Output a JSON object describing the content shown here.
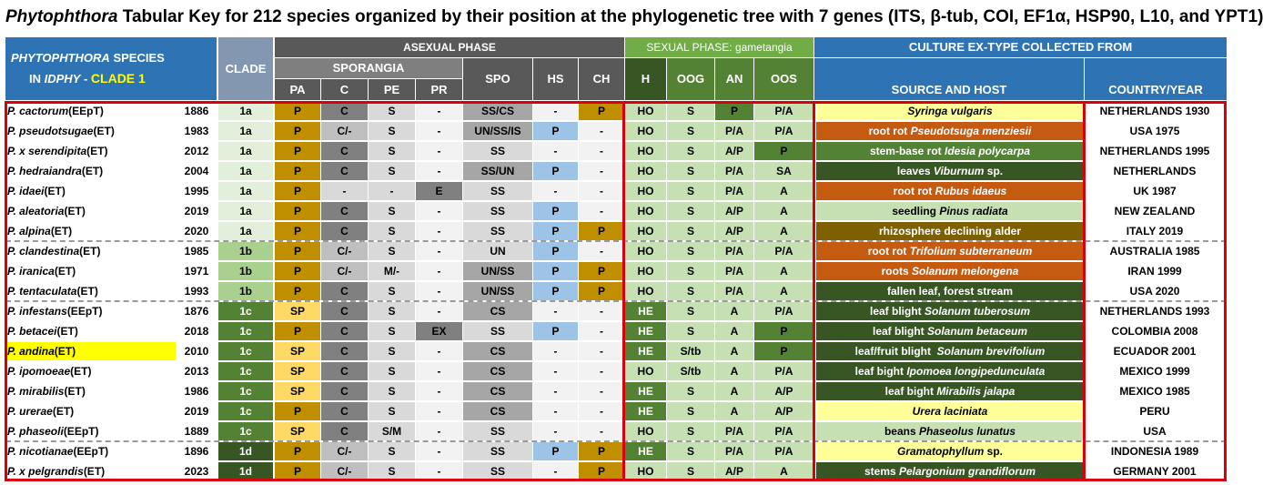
{
  "title": {
    "genus": "Phytophthora",
    "text": " Tabular Key for 212 species organized by their position at the phylogenetic tree with 7 genes (ITS, β-tub, COI, EF1α, HSP90, L10, and YPT1)"
  },
  "header": {
    "species_line1": "PHYTOPHTHORA",
    "species_line1_rest": " SPECIES",
    "species_line2": "IN ",
    "species_line2_it": "IDPHY",
    "species_line2_rest": " - ",
    "clade_label": "CLADE 1",
    "clade": "CLADE",
    "asexual": "ASEXUAL PHASE",
    "sporangia": "SPORANGIA",
    "sexual": "SEXUAL PHASE: gametangia",
    "culture": "CULTURE EX-TYPE COLLECTED FROM",
    "source": "SOURCE AND HOST",
    "country": "COUNTRY/YEAR",
    "cols": [
      "PA",
      "C",
      "PE",
      "PR",
      "SPO",
      "HS",
      "CH",
      "H",
      "OOG",
      "AN",
      "OOS"
    ]
  },
  "colors": {
    "header_blue": "#2e74b5",
    "header_gray_dark": "#595959",
    "header_gray_mid": "#7f7f7f",
    "header_green": "#70ad47",
    "gold": "#bf8f00",
    "pale_yellow": "#ffd966",
    "lightblue": "#9dc3e6",
    "green_dark": "#375623",
    "orange": "#c55a11",
    "red_frame": "#d9000d"
  },
  "rows": [
    {
      "sp": "P. cactorum",
      "tag": " (EEpT)",
      "year": "1886",
      "clade": "1a",
      "pa": "P",
      "c": "C",
      "pe": "S",
      "pr": "-",
      "spo": "SS/CS",
      "hs": "-",
      "ch": "P",
      "h": "HO",
      "oog": "S",
      "an": "P",
      "oos": "P/A",
      "src_pre": "",
      "src_it": "Syringa vulgaris",
      "src_post": "",
      "country": "NETHERLANDS 1930",
      "src_style": "yellow",
      "an_style": "mid",
      "oos_style": "pale"
    },
    {
      "sp": "P. pseudotsugae",
      "tag": " (ET)",
      "year": "1983",
      "clade": "1a",
      "pa": "P",
      "c": "C/-",
      "pe": "S",
      "pr": "-",
      "spo": "UN/SS/IS",
      "hs": "P",
      "ch": "-",
      "h": "HO",
      "oog": "S",
      "an": "P/A",
      "oos": "P/A",
      "src_pre": "root rot ",
      "src_it": "Pseudotsuga menziesii",
      "src_post": "",
      "country": "USA 1975",
      "src_style": "orange",
      "an_style": "pale",
      "oos_style": "pale"
    },
    {
      "sp": "P. x serendipita",
      "tag": " (ET)",
      "year": "2012",
      "clade": "1a",
      "pa": "P",
      "c": "C",
      "pe": "S",
      "pr": "-",
      "spo": "SS",
      "hs": "-",
      "ch": "-",
      "h": "HO",
      "oog": "S",
      "an": "A/P",
      "oos": "P",
      "src_pre": "stem-base rot ",
      "src_it": "Idesia polycarpa",
      "src_post": "",
      "country": "NETHERLANDS 1995",
      "src_style": "midgreen",
      "an_style": "pale",
      "oos_style": "mid"
    },
    {
      "sp": "P. hedraiandra",
      "tag": " (ET)",
      "year": "2004",
      "clade": "1a",
      "pa": "P",
      "c": "C",
      "pe": "S",
      "pr": "-",
      "spo": "SS/UN",
      "hs": "P",
      "ch": "-",
      "h": "HO",
      "oog": "S",
      "an": "P/A",
      "oos": "SA",
      "src_pre": "leaves ",
      "src_it": "Viburnum",
      "src_post": " sp.",
      "country": "NETHERLANDS",
      "src_style": "darkgreen",
      "an_style": "pale",
      "oos_style": "pale"
    },
    {
      "sp": "P. idaei",
      "tag": " (ET)",
      "year": "1995",
      "clade": "1a",
      "pa": "P",
      "c": "-",
      "pe": "-",
      "pr": "E",
      "spo": "SS",
      "hs": "-",
      "ch": "-",
      "h": "HO",
      "oog": "S",
      "an": "P/A",
      "oos": "A",
      "src_pre": "root rot ",
      "src_it": "Rubus idaeus",
      "src_post": "",
      "country": "UK 1987",
      "src_style": "orange",
      "an_style": "pale",
      "oos_style": "pale"
    },
    {
      "sp": "P. aleatoria",
      "tag": " (ET)",
      "year": "2019",
      "clade": "1a",
      "pa": "P",
      "c": "C",
      "pe": "S",
      "pr": "-",
      "spo": "SS",
      "hs": "P",
      "ch": "-",
      "h": "HO",
      "oog": "S",
      "an": "A/P",
      "oos": "A",
      "src_pre": "seedling ",
      "src_it": "Pinus radiata",
      "src_post": "",
      "country": "NEW ZEALAND",
      "src_style": "palegreen",
      "an_style": "pale",
      "oos_style": "pale"
    },
    {
      "sp": "P. alpina",
      "tag": " (ET)",
      "year": "2020",
      "clade": "1a",
      "pa": "P",
      "c": "C",
      "pe": "S",
      "pr": "-",
      "spo": "SS",
      "hs": "P",
      "ch": "P",
      "h": "HO",
      "oog": "S",
      "an": "A/P",
      "oos": "A",
      "src_pre": "rhizosphere declining alder",
      "src_it": "",
      "src_post": "",
      "country": "ITALY 2019",
      "src_style": "olive",
      "an_style": "pale",
      "oos_style": "pale"
    },
    {
      "sp": "P. clandestina",
      "tag": " (ET)",
      "year": "1985",
      "clade": "1b",
      "pa": "P",
      "c": "C/-",
      "pe": "S",
      "pr": "-",
      "spo": "UN",
      "hs": "P",
      "ch": "-",
      "h": "HO",
      "oog": "S",
      "an": "P/A",
      "oos": "P/A",
      "src_pre": "root rot ",
      "src_it": "Trifolium subterraneum",
      "src_post": "",
      "country": "AUSTRALIA 1985",
      "src_style": "orange",
      "an_style": "pale",
      "oos_style": "pale"
    },
    {
      "sp": "P. iranica",
      "tag": " (ET)",
      "year": "1971",
      "clade": "1b",
      "pa": "P",
      "c": "C/-",
      "pe": "M/-",
      "pr": "-",
      "spo": "UN/SS",
      "hs": "P",
      "ch": "P",
      "h": "HO",
      "oog": "S",
      "an": "P/A",
      "oos": "A",
      "src_pre": "roots ",
      "src_it": "Solanum melongena",
      "src_post": "",
      "country": "IRAN 1999",
      "src_style": "orange",
      "an_style": "pale",
      "oos_style": "pale"
    },
    {
      "sp": "P. tentaculata",
      "tag": " (ET)",
      "year": "1993",
      "clade": "1b",
      "pa": "P",
      "c": "C",
      "pe": "S",
      "pr": "-",
      "spo": "UN/SS",
      "hs": "P",
      "ch": "P",
      "h": "HO",
      "oog": "S",
      "an": "P/A",
      "oos": "A",
      "src_pre": "fallen leaf, forest stream",
      "src_it": "",
      "src_post": "",
      "country": "USA 2020",
      "src_style": "darkgreen",
      "an_style": "pale",
      "oos_style": "pale"
    },
    {
      "sp": "P. infestans",
      "tag": " (EEpT)",
      "year": "1876",
      "clade": "1c",
      "pa": "SP",
      "c": "C",
      "pe": "S",
      "pr": "-",
      "spo": "CS",
      "hs": "-",
      "ch": "-",
      "h": "HE",
      "oog": "S",
      "an": "A",
      "oos": "P/A",
      "src_pre": "leaf blight ",
      "src_it": "Solanum tuberosum",
      "src_post": "",
      "country": "NETHERLANDS 1993",
      "src_style": "darkgreen",
      "an_style": "pale",
      "oos_style": "pale"
    },
    {
      "sp": "P. betacei",
      "tag": " (ET)",
      "year": "2018",
      "clade": "1c",
      "pa": "P",
      "c": "C",
      "pe": "S",
      "pr": "EX",
      "spo": "SS",
      "hs": "P",
      "ch": "-",
      "h": "HE",
      "oog": "S",
      "an": "A",
      "oos": "P",
      "src_pre": "leaf blight ",
      "src_it": "Solanum betaceum",
      "src_post": "",
      "country": "COLOMBIA 2008",
      "src_style": "darkgreen",
      "an_style": "pale",
      "oos_style": "mid"
    },
    {
      "sp": "P. andina",
      "tag": " (ET)",
      "year": "2010",
      "clade": "1c",
      "pa": "SP",
      "c": "C",
      "pe": "S",
      "pr": "-",
      "spo": "CS",
      "hs": "-",
      "ch": "-",
      "h": "HE",
      "oog": "S/tb",
      "an": "A",
      "oos": "P",
      "src_pre": "leaf/fruit blight  ",
      "src_it": "Solanum brevifolium",
      "src_post": "",
      "country": "ECUADOR 2001",
      "src_style": "darkgreen",
      "an_style": "pale",
      "oos_style": "mid",
      "highlight": true
    },
    {
      "sp": "P. ipomoeae",
      "tag": " (ET)",
      "year": "2013",
      "clade": "1c",
      "pa": "SP",
      "c": "C",
      "pe": "S",
      "pr": "-",
      "spo": "CS",
      "hs": "-",
      "ch": "-",
      "h": "HO",
      "oog": "S/tb",
      "an": "A",
      "oos": "P/A",
      "src_pre": "leaf bight ",
      "src_it": "Ipomoea longipedunculata",
      "src_post": "",
      "country": "MEXICO 1999",
      "src_style": "darkgreen",
      "an_style": "pale",
      "oos_style": "pale"
    },
    {
      "sp": "P. mirabilis",
      "tag": " (ET)",
      "year": "1986",
      "clade": "1c",
      "pa": "SP",
      "c": "C",
      "pe": "S",
      "pr": "-",
      "spo": "CS",
      "hs": "-",
      "ch": "-",
      "h": "HE",
      "oog": "S",
      "an": "A",
      "oos": "A/P",
      "src_pre": "leaf bight ",
      "src_it": "Mirabilis jalapa",
      "src_post": "",
      "country": "MEXICO 1985",
      "src_style": "darkgreen",
      "an_style": "pale",
      "oos_style": "pale"
    },
    {
      "sp": "P. urerae",
      "tag": " (ET)",
      "year": "2019",
      "clade": "1c",
      "pa": "P",
      "c": "C",
      "pe": "S",
      "pr": "-",
      "spo": "CS",
      "hs": "-",
      "ch": "-",
      "h": "HE",
      "oog": "S",
      "an": "A",
      "oos": "A/P",
      "src_pre": "",
      "src_it": "Urera laciniata",
      "src_post": "",
      "country": "PERU",
      "src_style": "yellow",
      "an_style": "pale",
      "oos_style": "pale"
    },
    {
      "sp": "P. phaseoli",
      "tag": " (EEpT)",
      "year": "1889",
      "clade": "1c",
      "pa": "SP",
      "c": "C",
      "pe": "S/M",
      "pr": "-",
      "spo": "SS",
      "hs": "-",
      "ch": "-",
      "h": "HO",
      "oog": "S",
      "an": "P/A",
      "oos": "P/A",
      "src_pre": "beans ",
      "src_it": "Phaseolus lunatus",
      "src_post": "",
      "country": "USA",
      "src_style": "palegreen",
      "an_style": "pale",
      "oos_style": "pale"
    },
    {
      "sp": "P. nicotianae",
      "tag": " (EEpT)",
      "year": "1896",
      "clade": "1d",
      "pa": "P",
      "c": "C/-",
      "pe": "S",
      "pr": "-",
      "spo": "SS",
      "hs": "P",
      "ch": "P",
      "h": "HE",
      "oog": "S",
      "an": "P/A",
      "oos": "P/A",
      "src_pre": "",
      "src_it": "Gramatophyllum",
      "src_post": " sp.",
      "country": "INDONESIA 1989",
      "src_style": "yellow",
      "an_style": "pale",
      "oos_style": "pale"
    },
    {
      "sp": "P. x pelgrandis",
      "tag": " (ET)",
      "year": "2023",
      "clade": "1d",
      "pa": "P",
      "c": "C/-",
      "pe": "S",
      "pr": "-",
      "spo": "SS",
      "hs": "-",
      "ch": "P",
      "h": "HO",
      "oog": "S",
      "an": "A/P",
      "oos": "A",
      "src_pre": "stems ",
      "src_it": "Pelargonium grandiflorum",
      "src_post": "",
      "country": "GERMANY 2001",
      "src_style": "darkgreen",
      "an_style": "pale",
      "oos_style": "pale"
    }
  ]
}
